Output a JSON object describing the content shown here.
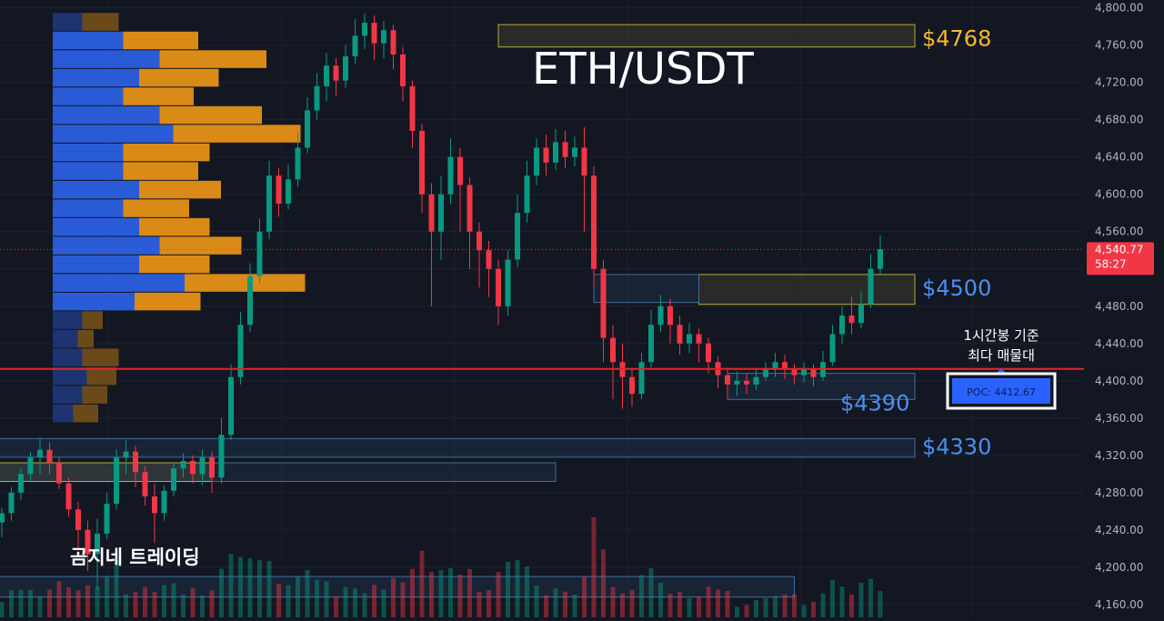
{
  "chart_data": {
    "type": "candlestick",
    "symbol": "ETH/USDT",
    "watermark": "곰지네 트레이딩",
    "y_axis": {
      "ticks": [
        "4,800.00",
        "4,760.00",
        "4,720.00",
        "4,680.00",
        "4,640.00",
        "4,600.00",
        "4,560.00",
        "4,520.00",
        "4,480.00",
        "4,440.00",
        "4,400.00",
        "4,360.00",
        "4,320.00",
        "4,280.00",
        "4,240.00",
        "4,200.00",
        "4,160.00"
      ],
      "range": [
        4155,
        4805
      ]
    },
    "current_price": {
      "value": 4540.77,
      "label": "4,540.77",
      "countdown": "58:27"
    },
    "poc": {
      "value": 4412.67,
      "label": "POC: 4412.67",
      "note_line1": "1시간봉 기준",
      "note_line2": "최다 매물대"
    },
    "levels": [
      {
        "label": "$4768",
        "price": 4768,
        "color": "#f5b82e"
      },
      {
        "label": "$4500",
        "price": 4500,
        "color": "#4a8ff0"
      },
      {
        "label": "$4390",
        "price": 4390,
        "color": "#4a8ff0"
      },
      {
        "label": "$4330",
        "price": 4330,
        "color": "#4a8ff0"
      }
    ],
    "zones": [
      {
        "kind": "supply",
        "from": 4758,
        "to": 4782,
        "start": 52,
        "end": 100
      },
      {
        "kind": "supply",
        "from": 4482,
        "to": 4514,
        "start": 73,
        "end": 100
      },
      {
        "kind": "demand",
        "from": 4484,
        "to": 4514,
        "start": 62,
        "end": 73
      },
      {
        "kind": "demand",
        "from": 4380,
        "to": 4408,
        "start": 76,
        "end": 100
      },
      {
        "kind": "demand",
        "from": 4318,
        "to": 4338,
        "start": -20,
        "end": 100
      },
      {
        "kind": "demand",
        "from": 4292,
        "to": 4312,
        "start": -20,
        "end": 58
      },
      {
        "kind": "supply",
        "from": 4292,
        "to": 4312,
        "start": -20,
        "end": 22
      },
      {
        "kind": "demand",
        "from": 4168,
        "to": 4190,
        "start": -20,
        "end": 83
      }
    ],
    "volume_profile": [
      {
        "price": 4785,
        "buy": 0.13,
        "sell": 0.16
      },
      {
        "price": 4765,
        "buy": 0.31,
        "sell": 0.33
      },
      {
        "price": 4745,
        "buy": 0.47,
        "sell": 0.47
      },
      {
        "price": 4725,
        "buy": 0.38,
        "sell": 0.35
      },
      {
        "price": 4705,
        "buy": 0.31,
        "sell": 0.31
      },
      {
        "price": 4685,
        "buy": 0.47,
        "sell": 0.45
      },
      {
        "price": 4665,
        "buy": 0.53,
        "sell": 0.56
      },
      {
        "price": 4645,
        "buy": 0.31,
        "sell": 0.38
      },
      {
        "price": 4625,
        "buy": 0.31,
        "sell": 0.33
      },
      {
        "price": 4605,
        "buy": 0.38,
        "sell": 0.36
      },
      {
        "price": 4585,
        "buy": 0.31,
        "sell": 0.29
      },
      {
        "price": 4565,
        "buy": 0.38,
        "sell": 0.31
      },
      {
        "price": 4545,
        "buy": 0.47,
        "sell": 0.36
      },
      {
        "price": 4525,
        "buy": 0.38,
        "sell": 0.31
      },
      {
        "price": 4505,
        "buy": 0.58,
        "sell": 0.53
      },
      {
        "price": 4485,
        "buy": 0.36,
        "sell": 0.29
      },
      {
        "price": 4465,
        "buy": 0.13,
        "sell": 0.09
      },
      {
        "price": 4445,
        "buy": 0.11,
        "sell": 0.07
      },
      {
        "price": 4425,
        "buy": 0.13,
        "sell": 0.16
      },
      {
        "price": 4405,
        "buy": 0.15,
        "sell": 0.13
      },
      {
        "price": 4385,
        "buy": 0.13,
        "sell": 0.11
      },
      {
        "price": 4365,
        "buy": 0.09,
        "sell": 0.11
      }
    ],
    "candles": [
      [
        4248,
        4258,
        4232,
        4264
      ],
      [
        4258,
        4280,
        4250,
        4286
      ],
      [
        4280,
        4300,
        4272,
        4306
      ],
      [
        4300,
        4318,
        4292,
        4324
      ],
      [
        4318,
        4326,
        4300,
        4338
      ],
      [
        4326,
        4312,
        4300,
        4334
      ],
      [
        4312,
        4290,
        4284,
        4318
      ],
      [
        4290,
        4262,
        4254,
        4296
      ],
      [
        4262,
        4240,
        4218,
        4270
      ],
      [
        4240,
        4214,
        4196,
        4250
      ],
      [
        4214,
        4236,
        4176,
        4252
      ],
      [
        4236,
        4268,
        4230,
        4280
      ],
      [
        4268,
        4318,
        4262,
        4326
      ],
      [
        4318,
        4324,
        4300,
        4336
      ],
      [
        4324,
        4302,
        4286,
        4330
      ],
      [
        4302,
        4276,
        4266,
        4308
      ],
      [
        4276,
        4258,
        4226,
        4290
      ],
      [
        4258,
        4282,
        4250,
        4288
      ],
      [
        4282,
        4306,
        4276,
        4312
      ],
      [
        4306,
        4314,
        4296,
        4322
      ],
      [
        4314,
        4300,
        4290,
        4320
      ],
      [
        4300,
        4318,
        4288,
        4326
      ],
      [
        4318,
        4296,
        4280,
        4324
      ],
      [
        4296,
        4342,
        4290,
        4360
      ],
      [
        4342,
        4404,
        4336,
        4418
      ],
      [
        4404,
        4460,
        4396,
        4474
      ],
      [
        4460,
        4512,
        4452,
        4526
      ],
      [
        4512,
        4560,
        4504,
        4574
      ],
      [
        4560,
        4620,
        4552,
        4636
      ],
      [
        4620,
        4590,
        4576,
        4628
      ],
      [
        4590,
        4616,
        4584,
        4632
      ],
      [
        4616,
        4650,
        4608,
        4666
      ],
      [
        4650,
        4690,
        4644,
        4704
      ],
      [
        4690,
        4716,
        4680,
        4730
      ],
      [
        4716,
        4738,
        4700,
        4752
      ],
      [
        4738,
        4722,
        4706,
        4746
      ],
      [
        4722,
        4748,
        4714,
        4760
      ],
      [
        4748,
        4770,
        4740,
        4788
      ],
      [
        4770,
        4784,
        4756,
        4794
      ],
      [
        4784,
        4762,
        4744,
        4792
      ],
      [
        4762,
        4776,
        4746,
        4786
      ],
      [
        4776,
        4750,
        4734,
        4782
      ],
      [
        4750,
        4716,
        4700,
        4758
      ],
      [
        4716,
        4668,
        4650,
        4722
      ],
      [
        4668,
        4600,
        4580,
        4676
      ],
      [
        4600,
        4560,
        4480,
        4612
      ],
      [
        4560,
        4600,
        4530,
        4620
      ],
      [
        4600,
        4640,
        4590,
        4660
      ],
      [
        4640,
        4610,
        4560,
        4650
      ],
      [
        4610,
        4560,
        4520,
        4618
      ],
      [
        4560,
        4540,
        4500,
        4570
      ],
      [
        4540,
        4520,
        4490,
        4550
      ],
      [
        4520,
        4480,
        4460,
        4530
      ],
      [
        4480,
        4530,
        4470,
        4540
      ],
      [
        4530,
        4580,
        4522,
        4600
      ],
      [
        4580,
        4620,
        4570,
        4636
      ],
      [
        4620,
        4650,
        4610,
        4660
      ],
      [
        4650,
        4634,
        4620,
        4664
      ],
      [
        4634,
        4656,
        4626,
        4670
      ],
      [
        4656,
        4640,
        4628,
        4668
      ],
      [
        4640,
        4650,
        4630,
        4662
      ],
      [
        4650,
        4620,
        4560,
        4672
      ],
      [
        4620,
        4520,
        4500,
        4630
      ],
      [
        4520,
        4446,
        4420,
        4530
      ],
      [
        4446,
        4420,
        4380,
        4460
      ],
      [
        4420,
        4404,
        4370,
        4440
      ],
      [
        4404,
        4386,
        4372,
        4414
      ],
      [
        4386,
        4420,
        4380,
        4430
      ],
      [
        4420,
        4460,
        4414,
        4476
      ],
      [
        4460,
        4480,
        4452,
        4492
      ],
      [
        4480,
        4460,
        4440,
        4488
      ],
      [
        4460,
        4440,
        4428,
        4470
      ],
      [
        4440,
        4450,
        4430,
        4462
      ],
      [
        4450,
        4440,
        4420,
        4456
      ],
      [
        4440,
        4420,
        4408,
        4446
      ],
      [
        4420,
        4406,
        4392,
        4426
      ],
      [
        4406,
        4396,
        4380,
        4414
      ],
      [
        4396,
        4400,
        4384,
        4410
      ],
      [
        4400,
        4396,
        4386,
        4408
      ],
      [
        4396,
        4404,
        4390,
        4412
      ],
      [
        4404,
        4412,
        4400,
        4420
      ],
      [
        4412,
        4420,
        4404,
        4430
      ],
      [
        4420,
        4412,
        4402,
        4428
      ],
      [
        4412,
        4406,
        4396,
        4418
      ],
      [
        4406,
        4412,
        4398,
        4420
      ],
      [
        4412,
        4404,
        4394,
        4418
      ],
      [
        4404,
        4420,
        4400,
        4432
      ],
      [
        4420,
        4450,
        4416,
        4460
      ],
      [
        4450,
        4470,
        4440,
        4480
      ],
      [
        4470,
        4462,
        4450,
        4490
      ],
      [
        4462,
        4482,
        4456,
        4496
      ],
      [
        4482,
        4520,
        4478,
        4536
      ],
      [
        4520,
        4541,
        4514,
        4556
      ]
    ]
  }
}
